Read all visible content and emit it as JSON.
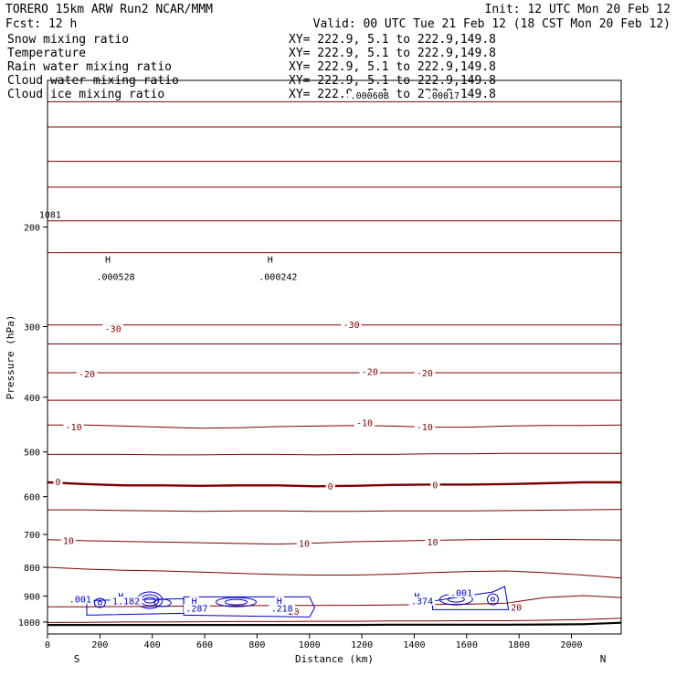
{
  "header": {
    "model": "TORERO  15km ARW   Run2    NCAR/MMM",
    "init": "Init: 12 UTC Mon 20 Feb 12",
    "fcst": "Fcst:   12 h",
    "valid": "Valid: 00 UTC Tue 21 Feb 12 (18 CST Mon 20 Feb 12)"
  },
  "legend": [
    {
      "name": "Snow mixing ratio",
      "xy": "XY= 222.9,  5.1 to 222.9,149.8",
      "color": "#000000"
    },
    {
      "name": "Temperature",
      "xy": "XY= 222.9,  5.1 to 222.9,149.8",
      "color": "#cc0000"
    },
    {
      "name": "Rain water mixing ratio",
      "xy": "XY= 222.9,  5.1 to 222.9,149.8",
      "color": "#cc0000"
    },
    {
      "name": "Cloud water mixing ratio",
      "xy": "XY= 222.9,  5.1 to 222.9,149.8",
      "color": "#0000cc"
    },
    {
      "name": "Cloud ice mixing ratio",
      "xy": "XY= 222.9,  5.1 to 222.9,149.8",
      "color": "#000000"
    }
  ],
  "chart_data": {
    "type": "line",
    "xlabel": "Distance (km)",
    "ylabel": "Pressure (hPa)",
    "xlim": [
      0,
      2190
    ],
    "ylim": [
      1050,
      110
    ],
    "yscale": "log",
    "x_ticks": [
      0,
      200,
      400,
      600,
      800,
      1000,
      1200,
      1400,
      1600,
      1800,
      2000
    ],
    "y_ticks": [
      200,
      300,
      400,
      500,
      600,
      700,
      800,
      900,
      1000
    ],
    "endpoints": {
      "left": "S",
      "right": "N"
    },
    "colors": {
      "temperature": "#800000",
      "cloud_water": "#0000cc",
      "surface": "#000000",
      "frame": "#000000"
    },
    "x": [
      0,
      146,
      292,
      438,
      584,
      730,
      876,
      1022,
      1168,
      1314,
      1460,
      1606,
      1752,
      1898,
      2044,
      2190
    ],
    "temperature_isotherms": [
      {
        "t": -60,
        "p": [
          120,
          120,
          120,
          120,
          120,
          120,
          120,
          120,
          120,
          120,
          120,
          120,
          120,
          120,
          120,
          120
        ]
      },
      {
        "t": -55,
        "p": [
          133,
          133,
          133,
          133,
          133,
          133,
          133,
          133,
          133,
          133,
          133,
          133,
          133,
          133,
          133,
          133
        ]
      },
      {
        "t": -50,
        "p": [
          153,
          153,
          153,
          153,
          153,
          153,
          153,
          153,
          153,
          153,
          153,
          153,
          153,
          153,
          153,
          153
        ]
      },
      {
        "t": -45,
        "p": [
          170,
          170,
          170,
          170,
          170,
          170,
          170,
          170,
          170,
          170,
          170,
          170,
          170,
          170,
          170,
          170
        ]
      },
      {
        "t": -40,
        "p": [
          195,
          195,
          195,
          195,
          195,
          195,
          195,
          195,
          195,
          195,
          195,
          195,
          195,
          195,
          195,
          195
        ]
      },
      {
        "t": -35,
        "p": [
          222,
          222,
          222,
          222,
          222,
          222,
          222,
          222,
          222,
          222,
          222,
          222,
          222,
          222,
          222,
          222
        ]
      },
      {
        "t": -30,
        "p": [
          298,
          298,
          298,
          298,
          298,
          298,
          298,
          298,
          298,
          298,
          298,
          298,
          298,
          298,
          298,
          298
        ]
      },
      {
        "t": -25,
        "p": [
          322,
          322,
          322,
          322,
          322,
          322,
          322,
          322,
          322,
          322,
          322,
          322,
          322,
          322,
          322,
          322
        ]
      },
      {
        "t": -20,
        "p": [
          362,
          362,
          362,
          362,
          362,
          362,
          362,
          362,
          362,
          362,
          362,
          362,
          362,
          362,
          362,
          362
        ]
      },
      {
        "t": -15,
        "p": [
          405,
          405,
          405,
          405,
          405,
          405,
          405,
          405,
          405,
          405,
          405,
          405,
          405,
          405,
          405,
          405
        ]
      },
      {
        "t": -10,
        "p": [
          448,
          448,
          450,
          452,
          454,
          453,
          451,
          450,
          449,
          450,
          452,
          452,
          450,
          449,
          449,
          448
        ]
      },
      {
        "t": -5,
        "p": [
          505,
          505,
          505,
          506,
          506,
          505,
          505,
          506,
          505,
          505,
          504,
          504,
          503,
          503,
          503,
          503
        ]
      },
      {
        "t": 0,
        "p": [
          566,
          570,
          573,
          573,
          574,
          573,
          573,
          575,
          574,
          572,
          571,
          571,
          570,
          568,
          566,
          566
        ]
      },
      {
        "t": 5,
        "p": [
          633,
          633,
          635,
          636,
          637,
          636,
          636,
          637,
          637,
          636,
          636,
          636,
          635,
          634,
          633,
          632
        ]
      },
      {
        "t": 10,
        "p": [
          715,
          718,
          720,
          722,
          724,
          726,
          728,
          725,
          721,
          719,
          717,
          715,
          714,
          714,
          715,
          716
        ]
      },
      {
        "t": 15,
        "p": [
          800,
          806,
          810,
          812,
          816,
          820,
          824,
          826,
          826,
          823,
          818,
          814,
          812,
          818,
          826,
          836
        ]
      },
      {
        "t": 20,
        "p": [
          940,
          940,
          939,
          938,
          937,
          936,
          935,
          935,
          934,
          933,
          931,
          930,
          926,
          905,
          898,
          905
        ]
      },
      {
        "t": 25,
        "p": [
          1002,
          1001,
          1000,
          1000,
          999,
          998,
          998,
          997,
          997,
          996,
          996,
          995,
          995,
          993,
          990,
          985
        ]
      }
    ],
    "surface_pressure": [
      1012,
      1012,
      1012,
      1012,
      1012,
      1012,
      1012,
      1012,
      1012,
      1011,
      1011,
      1011,
      1011,
      1010,
      1009,
      1003
    ],
    "isotherm_labels": [
      {
        "text": "-30",
        "x": 250,
        "p": 303
      },
      {
        "text": "-30",
        "x": 1160,
        "p": 298
      },
      {
        "text": "-20",
        "x": 150,
        "p": 364
      },
      {
        "text": "-20",
        "x": 1230,
        "p": 361
      },
      {
        "text": "-20",
        "x": 1440,
        "p": 363
      },
      {
        "text": "-10",
        "x": 100,
        "p": 452
      },
      {
        "text": "-10",
        "x": 1210,
        "p": 444
      },
      {
        "text": "-10",
        "x": 1440,
        "p": 452
      },
      {
        "text": "0",
        "x": 40,
        "p": 565
      },
      {
        "text": "0",
        "x": 1080,
        "p": 576
      },
      {
        "text": "0",
        "x": 1480,
        "p": 572
      },
      {
        "text": "10",
        "x": 80,
        "p": 718
      },
      {
        "text": "10",
        "x": 980,
        "p": 726
      },
      {
        "text": "10",
        "x": 1470,
        "p": 722
      },
      {
        "text": "20",
        "x": 940,
        "p": 958
      },
      {
        "text": "20",
        "x": 1790,
        "p": 942
      }
    ],
    "cloud_water_labels": [
      {
        "text": ".001",
        "x": 125,
        "p": 912
      },
      {
        "text": "H",
        "x": 280,
        "p": 900
      },
      {
        "text": "1.182",
        "x": 300,
        "p": 918
      },
      {
        "text": "H",
        "x": 560,
        "p": 918
      },
      {
        "text": ".287",
        "x": 570,
        "p": 946
      },
      {
        "text": "H",
        "x": 885,
        "p": 918
      },
      {
        "text": ".218",
        "x": 895,
        "p": 946
      },
      {
        "text": "H",
        "x": 1410,
        "p": 900
      },
      {
        "text": ".374",
        "x": 1430,
        "p": 918
      },
      {
        "text": ".001",
        "x": 1580,
        "p": 888
      }
    ],
    "snow_labels": [
      {
        "text": "1081",
        "x": 10,
        "p": 190
      },
      {
        "text": "H",
        "x": 230,
        "p": 228
      },
      {
        "text": ".000528",
        "x": 260,
        "p": 245
      },
      {
        "text": "H",
        "x": 850,
        "p": 228
      },
      {
        "text": ".000242",
        "x": 880,
        "p": 245
      },
      {
        "text": ".00060B",
        "x": 1230,
        "p": 117
      },
      {
        "text": ".00017",
        "x": 1510,
        "p": 117
      }
    ]
  }
}
